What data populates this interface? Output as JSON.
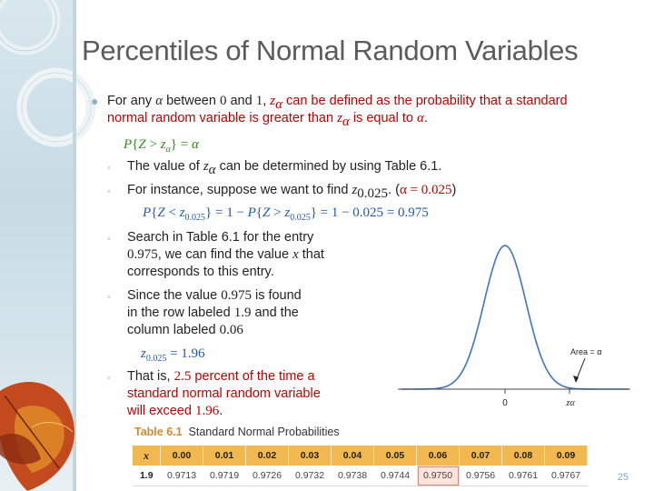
{
  "slide": {
    "title": "Percentiles of Normal Random Variables",
    "page_number": "25",
    "bullet1": {
      "t_for_any": "For any ",
      "alpha": "α",
      "t_between": " between ",
      "zero": "0",
      "t_and": " and ",
      "one": "1",
      "comma": ", ",
      "z": "z",
      "t_red1": " can be defined as the probability that a standard",
      "t_red2": "normal random variable is greater than ",
      "t_red3": " is equal to ",
      "period": "."
    },
    "formula1": {
      "p": "P",
      "open": "{",
      "z1": "Z",
      "gt": " > ",
      "z2": "z",
      "close": "}",
      "eq": " = ",
      "alpha": "α"
    },
    "sub1": {
      "t1": "The value of ",
      "z": "z",
      "t2": " can be determined by using Table 6.1."
    },
    "sub2": {
      "t1": "For instance, suppose we want to find ",
      "z": "z",
      "sub": "0.025",
      "t2": ". (",
      "cond": "α = 0.025",
      "close": ")"
    },
    "formula2": {
      "p1": "P",
      "open1": "{",
      "z1": "Z",
      "lt": " < ",
      "z2": "z",
      "sub1": "0.025",
      "close1": "}",
      "eq1": " = 1 − ",
      "p2": "P",
      "open2": "{",
      "z3": "Z",
      "gt": " > ",
      "z4": "z",
      "sub2": "0.025",
      "close2": "}",
      "eq2": " = 1 − 0.025 = 0.975"
    },
    "sub3": {
      "t1": "Search in Table 6.1 for the entry",
      "val": "0.975",
      "t2": ", we can find the value ",
      "x": "x",
      "t3": " that",
      "t4": "corresponds to this entry."
    },
    "sub4": {
      "t1": "Since the value ",
      "val": "0.975",
      "t2": " is found",
      "t3": "in the row labeled ",
      "row": "1.9",
      "t4": " and the",
      "t5": "column labeled ",
      "col": "0.06"
    },
    "formula3": {
      "z": "z",
      "sub": "0.025",
      "eq": " = 1.96"
    },
    "sub5": {
      "t1": "That is, ",
      "pct": "2.5",
      "t2": " percent of the time a",
      "t3": "standard normal random variable",
      "t4": "will exceed ",
      "val": "1.96",
      "period": "."
    }
  },
  "chart_data": {
    "type": "area",
    "title": "",
    "x_ticks": [
      "0",
      "zα"
    ],
    "annotation": "Area = α",
    "curve": "standard normal density",
    "shaded_region": "right tail beyond zα",
    "colors": {
      "curve": "#4472c4",
      "shade": "#a9b6dd"
    }
  },
  "table": {
    "title_label": "Table 6.1",
    "title_text": "Standard Normal Probabilities",
    "header_x": "x",
    "columns": [
      "0.00",
      "0.01",
      "0.02",
      "0.03",
      "0.04",
      "0.05",
      "0.06",
      "0.07",
      "0.08",
      "0.09"
    ],
    "row_label": "1.9",
    "values": [
      "0.9713",
      "0.9719",
      "0.9726",
      "0.9732",
      "0.9738",
      "0.9744",
      "0.9750",
      "0.9756",
      "0.9761",
      "0.9767"
    ],
    "highlight_column": 6
  }
}
